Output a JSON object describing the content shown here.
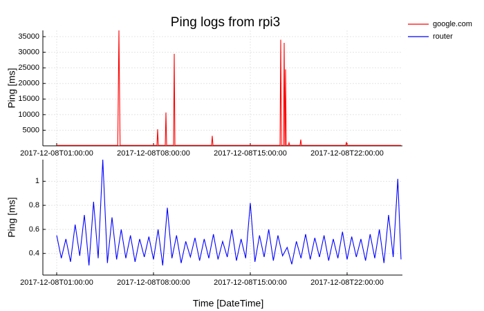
{
  "chart_data": [
    {
      "type": "line",
      "title": "Ping logs from rpi3",
      "ylabel": "Ping [ms]",
      "grid": true,
      "legend": "outside-top-right",
      "xlim": [
        "2017-12-08T00:00:00",
        "2017-12-09T02:00:00"
      ],
      "xticks": [
        "2017-12-08T01:00:00",
        "2017-12-08T08:00:00",
        "2017-12-08T15:00:00",
        "2017-12-08T22:00:00"
      ],
      "ylim": [
        0,
        37000
      ],
      "yticks": [
        5000,
        10000,
        15000,
        20000,
        25000,
        30000,
        35000
      ],
      "x": [
        "2017-12-08T01:00:00",
        "2017-12-08T05:25:00",
        "2017-12-08T05:30:00",
        "2017-12-08T05:35:00",
        "2017-12-08T08:15:00",
        "2017-12-08T08:18:00",
        "2017-12-08T08:21:00",
        "2017-12-08T08:51:00",
        "2017-12-08T08:54:00",
        "2017-12-08T08:57:00",
        "2017-12-08T09:27:00",
        "2017-12-08T09:30:00",
        "2017-12-08T09:33:00",
        "2017-12-08T12:12:00",
        "2017-12-08T12:15:00",
        "2017-12-08T12:18:00",
        "2017-12-08T17:09:00",
        "2017-12-08T17:12:00",
        "2017-12-08T17:15:00",
        "2017-12-08T17:24:00",
        "2017-12-08T17:27:00",
        "2017-12-08T17:30:00",
        "2017-12-08T17:31:00",
        "2017-12-08T17:33:00",
        "2017-12-08T17:36:00",
        "2017-12-08T17:45:00",
        "2017-12-08T17:48:00",
        "2017-12-08T17:51:00",
        "2017-12-08T18:36:00",
        "2017-12-08T18:39:00",
        "2017-12-08T18:42:00",
        "2017-12-08T21:54:00",
        "2017-12-08T21:57:00",
        "2017-12-08T22:00:00",
        "2017-12-09T01:54:00"
      ],
      "series": [
        {
          "name": "google.com",
          "color": "#ff0000",
          "values": [
            150,
            150,
            37000,
            150,
            150,
            5300,
            150,
            150,
            10700,
            150,
            150,
            29500,
            150,
            150,
            3200,
            150,
            150,
            34000,
            150,
            150,
            33000,
            150,
            150,
            24500,
            150,
            150,
            1000,
            150,
            150,
            2000,
            150,
            150,
            1200,
            150,
            150
          ]
        }
      ]
    },
    {
      "type": "line",
      "ylabel": "Ping [ms]",
      "xlabel": "Time [DateTime]",
      "grid": true,
      "xlim": [
        "2017-12-08T00:00:00",
        "2017-12-09T02:00:00"
      ],
      "xticks": [
        "2017-12-08T01:00:00",
        "2017-12-08T08:00:00",
        "2017-12-08T15:00:00",
        "2017-12-08T22:00:00"
      ],
      "ylim": [
        0.22,
        1.18
      ],
      "yticks": [
        0.4,
        0.6,
        0.8,
        1.0
      ],
      "x": [
        "2017-12-08T01:00:00",
        "2017-12-08T01:20:00",
        "2017-12-08T01:40:00",
        "2017-12-08T02:00:00",
        "2017-12-08T02:20:00",
        "2017-12-08T02:40:00",
        "2017-12-08T03:00:00",
        "2017-12-08T03:20:00",
        "2017-12-08T03:40:00",
        "2017-12-08T04:00:00",
        "2017-12-08T04:20:00",
        "2017-12-08T04:40:00",
        "2017-12-08T05:00:00",
        "2017-12-08T05:20:00",
        "2017-12-08T05:40:00",
        "2017-12-08T06:00:00",
        "2017-12-08T06:20:00",
        "2017-12-08T06:40:00",
        "2017-12-08T07:00:00",
        "2017-12-08T07:20:00",
        "2017-12-08T07:40:00",
        "2017-12-08T08:00:00",
        "2017-12-08T08:20:00",
        "2017-12-08T08:40:00",
        "2017-12-08T09:00:00",
        "2017-12-08T09:20:00",
        "2017-12-08T09:40:00",
        "2017-12-08T10:00:00",
        "2017-12-08T10:20:00",
        "2017-12-08T10:40:00",
        "2017-12-08T11:00:00",
        "2017-12-08T11:20:00",
        "2017-12-08T11:40:00",
        "2017-12-08T12:00:00",
        "2017-12-08T12:20:00",
        "2017-12-08T12:40:00",
        "2017-12-08T13:00:00",
        "2017-12-08T13:20:00",
        "2017-12-08T13:40:00",
        "2017-12-08T14:00:00",
        "2017-12-08T14:20:00",
        "2017-12-08T14:40:00",
        "2017-12-08T15:00:00",
        "2017-12-08T15:20:00",
        "2017-12-08T15:40:00",
        "2017-12-08T16:00:00",
        "2017-12-08T16:20:00",
        "2017-12-08T16:40:00",
        "2017-12-08T17:00:00",
        "2017-12-08T17:20:00",
        "2017-12-08T17:40:00",
        "2017-12-08T18:00:00",
        "2017-12-08T18:20:00",
        "2017-12-08T18:40:00",
        "2017-12-08T19:00:00",
        "2017-12-08T19:20:00",
        "2017-12-08T19:40:00",
        "2017-12-08T20:00:00",
        "2017-12-08T20:20:00",
        "2017-12-08T20:40:00",
        "2017-12-08T21:00:00",
        "2017-12-08T21:20:00",
        "2017-12-08T21:40:00",
        "2017-12-08T22:00:00",
        "2017-12-08T22:20:00",
        "2017-12-08T22:40:00",
        "2017-12-08T23:00:00",
        "2017-12-08T23:20:00",
        "2017-12-08T23:40:00",
        "2017-12-09T00:00:00",
        "2017-12-09T00:20:00",
        "2017-12-09T00:40:00",
        "2017-12-09T01:00:00",
        "2017-12-09T01:20:00",
        "2017-12-09T01:40:00",
        "2017-12-09T01:54:00"
      ],
      "series": [
        {
          "name": "router",
          "color": "#0000ff",
          "values": [
            0.55,
            0.36,
            0.52,
            0.33,
            0.64,
            0.38,
            0.72,
            0.3,
            0.83,
            0.36,
            1.18,
            0.32,
            0.7,
            0.35,
            0.6,
            0.36,
            0.55,
            0.33,
            0.52,
            0.37,
            0.54,
            0.35,
            0.6,
            0.3,
            0.78,
            0.36,
            0.55,
            0.32,
            0.5,
            0.37,
            0.53,
            0.34,
            0.52,
            0.36,
            0.56,
            0.35,
            0.5,
            0.37,
            0.6,
            0.34,
            0.52,
            0.36,
            0.82,
            0.33,
            0.55,
            0.37,
            0.6,
            0.34,
            0.55,
            0.38,
            0.45,
            0.31,
            0.5,
            0.36,
            0.56,
            0.35,
            0.53,
            0.37,
            0.55,
            0.34,
            0.52,
            0.36,
            0.58,
            0.35,
            0.54,
            0.37,
            0.52,
            0.34,
            0.56,
            0.36,
            0.6,
            0.32,
            0.72,
            0.37,
            1.02,
            0.35
          ]
        }
      ]
    }
  ]
}
